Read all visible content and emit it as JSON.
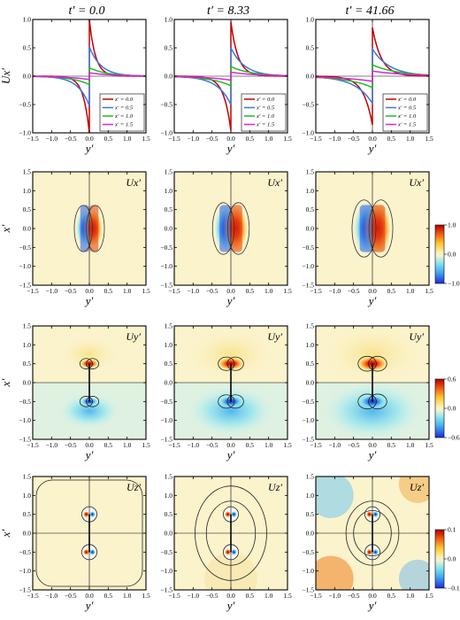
{
  "columns": [
    "t′ = 0.0",
    "t′ = 8.33",
    "t′ = 41.66"
  ],
  "t_values": [
    0.0,
    8.33,
    41.66
  ],
  "chart_data": [
    {
      "type": "line",
      "row": "line-profiles",
      "panels": [
        "t′ = 0.0",
        "t′ = 8.33",
        "t′ = 41.66"
      ],
      "ylabel": "Ux′",
      "xlabel": "y′",
      "xlim": [
        -1.5,
        1.5
      ],
      "ylim": [
        -1.0,
        1.0
      ],
      "x_ticks": [
        "−1.5",
        "−1.0",
        "−0.5",
        "0.0",
        "0.5",
        "1.0",
        "1.5"
      ],
      "y_ticks": [
        "−1.0",
        "−0.5",
        "0.0",
        "0.5",
        "1.0"
      ],
      "legend_position": "bottom-right",
      "series": [
        {
          "name": "x′ = 0.0",
          "color": "#c00000",
          "peak": [
            1.0,
            0.96,
            0.86
          ]
        },
        {
          "name": "x′ = 0.5",
          "color": "#3a78e0",
          "peak": [
            0.52,
            0.5,
            0.48
          ]
        },
        {
          "name": "x′ = 1.0",
          "color": "#22bb22",
          "peak": [
            0.15,
            0.17,
            0.2
          ]
        },
        {
          "name": "x′ = 1.5",
          "color": "#dd22dd",
          "peak": [
            0.06,
            0.07,
            0.09
          ]
        }
      ]
    },
    {
      "type": "heatmap",
      "row": "Ux-field",
      "field": "Ux′",
      "xlabel": "y′",
      "ylabel": "x′",
      "xlim": [
        -1.5,
        1.5
      ],
      "ylim": [
        -1.5,
        1.5
      ],
      "colorbar_ticks": [
        "1.0",
        "0.0",
        "−1.0"
      ],
      "vmin": -1.0,
      "vmax": 1.0
    },
    {
      "type": "heatmap",
      "row": "Uy-field",
      "field": "Uy′",
      "xlabel": "y′",
      "ylabel": "x′",
      "xlim": [
        -1.5,
        1.5
      ],
      "ylim": [
        -1.5,
        1.5
      ],
      "colorbar_ticks": [
        "0.6",
        "0.0",
        "−0.6"
      ],
      "vmin": -0.6,
      "vmax": 0.6
    },
    {
      "type": "heatmap",
      "row": "Uz-field",
      "field": "Uz′",
      "xlabel": "y′",
      "ylabel": "x′",
      "xlim": [
        -1.5,
        1.5
      ],
      "ylim": [
        -1.5,
        1.5
      ],
      "colorbar_ticks": [
        "0.1",
        "0.0",
        "−0.1"
      ],
      "vmin": -0.1,
      "vmax": 0.1
    }
  ]
}
